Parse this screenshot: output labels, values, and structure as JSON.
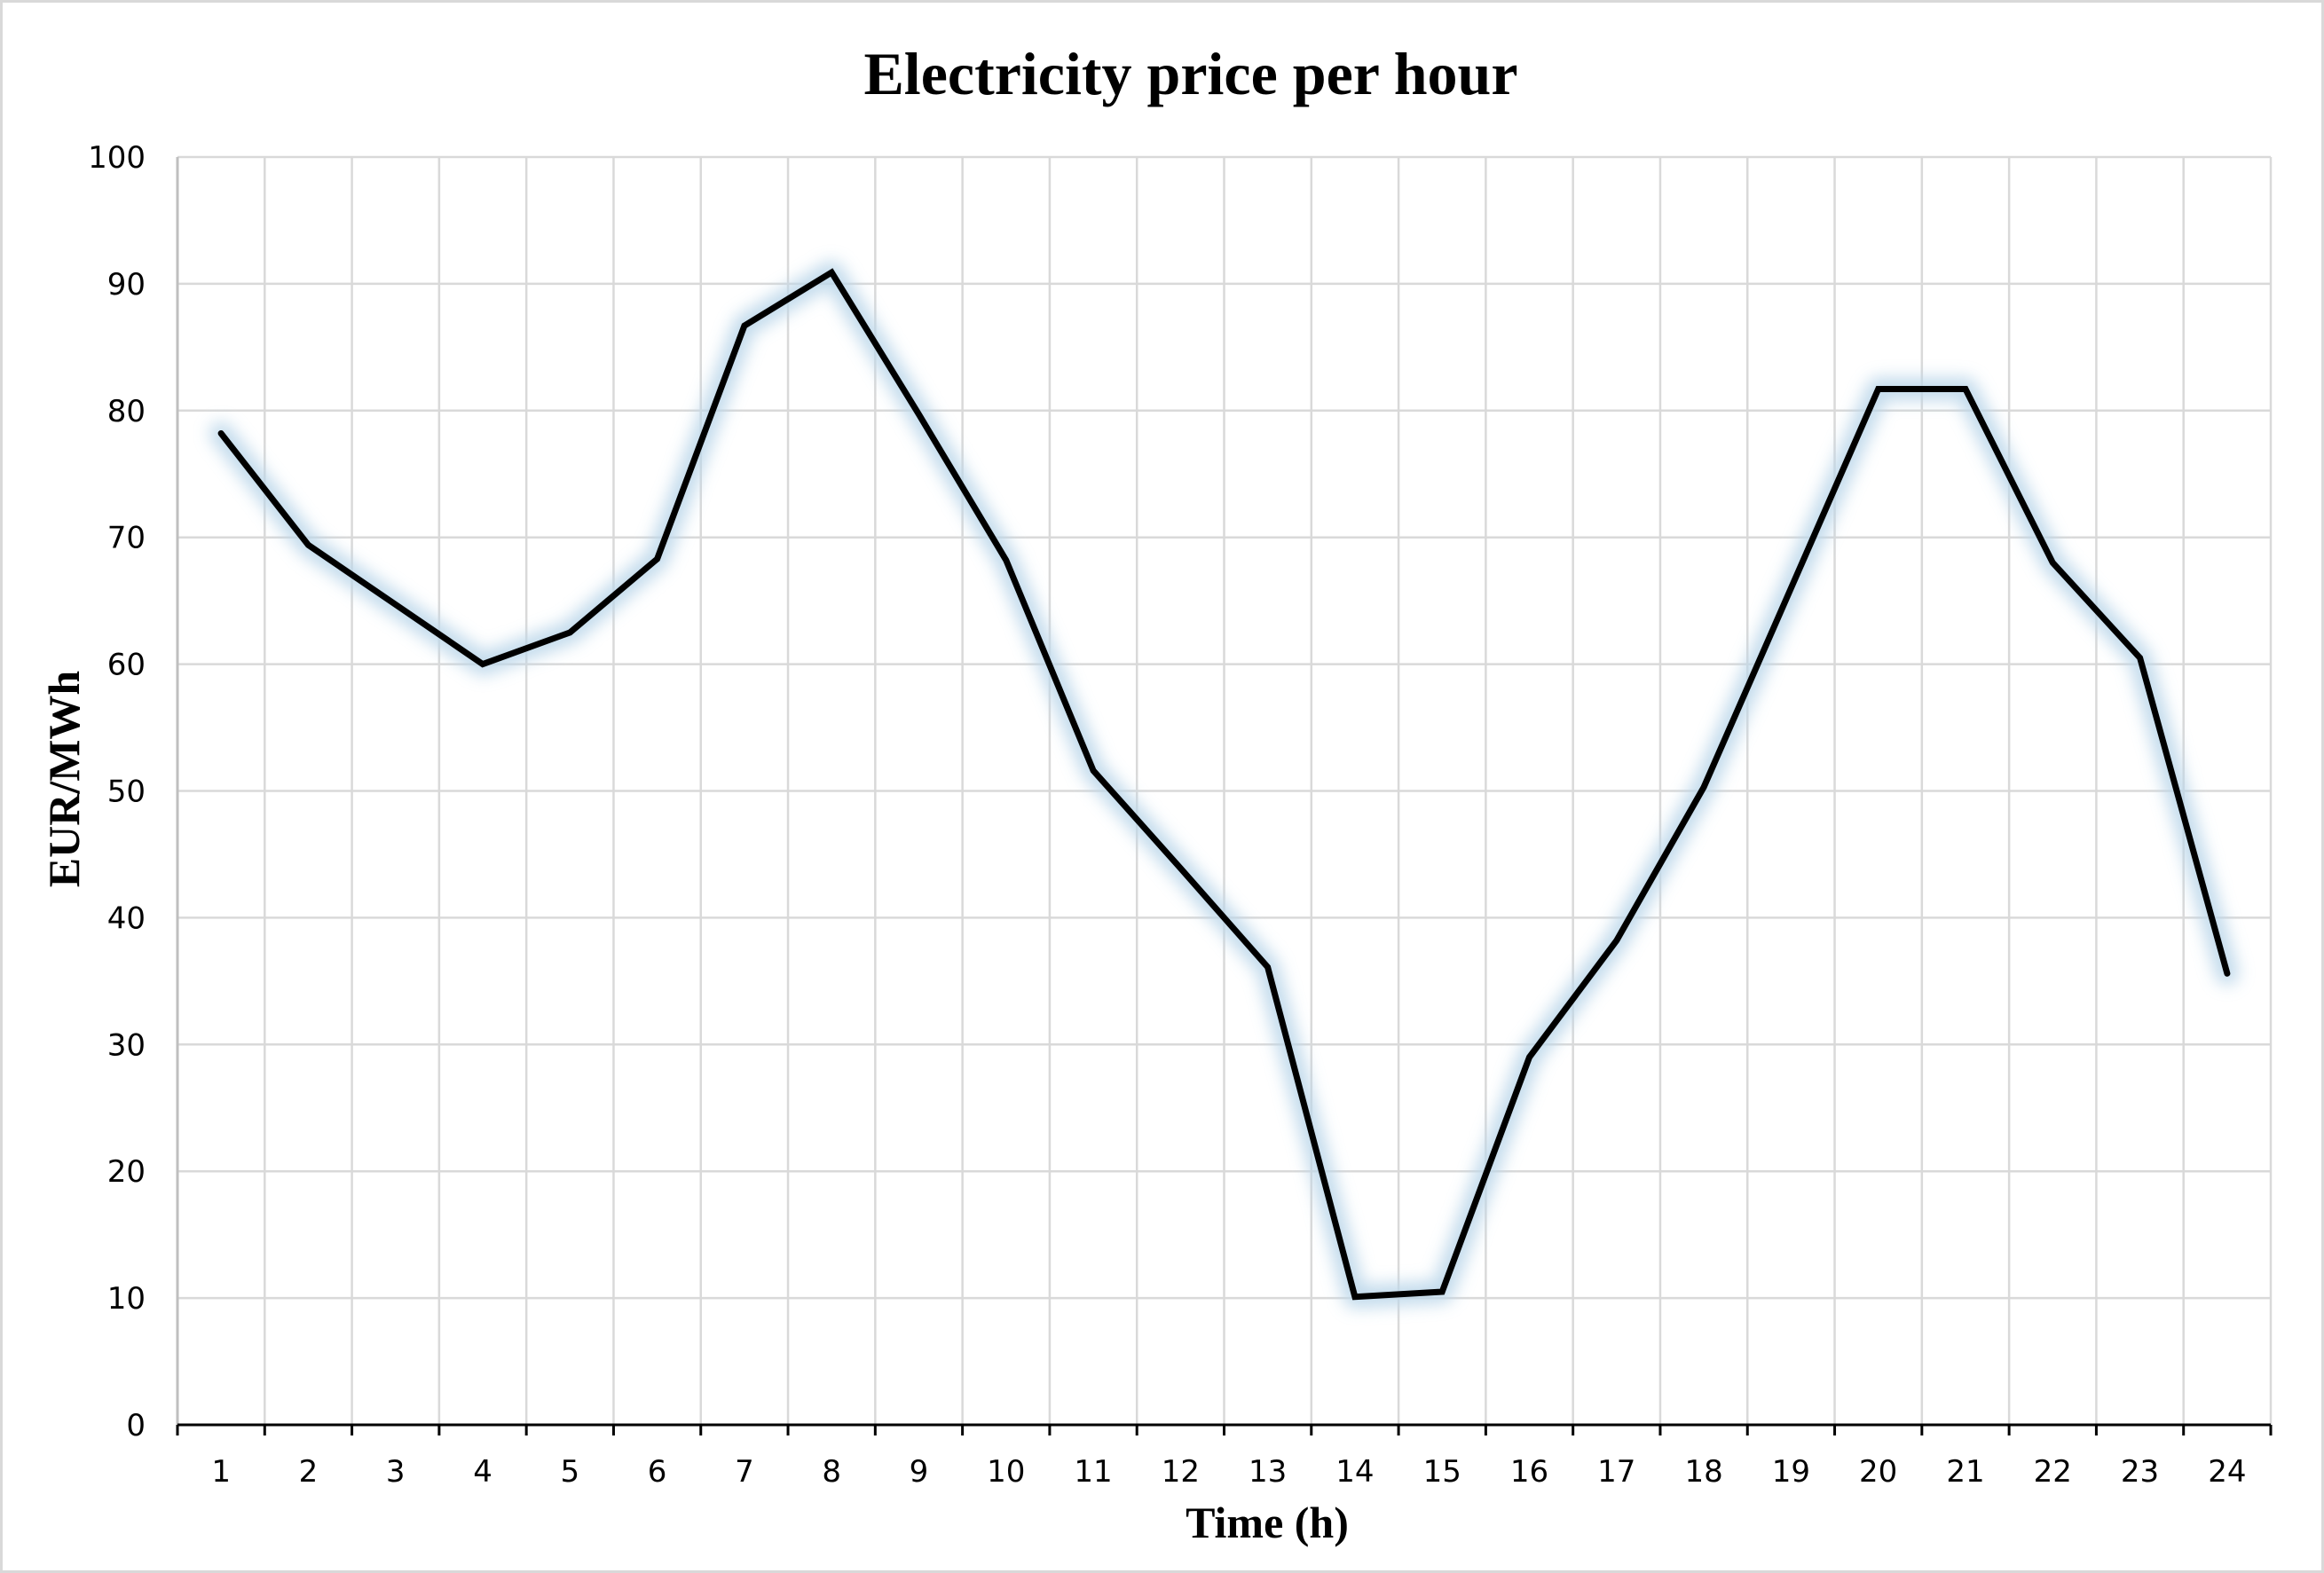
{
  "chart_data": {
    "type": "line",
    "title": "Electricity price per hour",
    "xlabel": "Time (h)",
    "ylabel": "EUR/MWh",
    "categories": [
      "1",
      "2",
      "3",
      "4",
      "5",
      "6",
      "7",
      "8",
      "9",
      "10",
      "11",
      "12",
      "13",
      "14",
      "15",
      "16",
      "17",
      "18",
      "19",
      "20",
      "21",
      "22",
      "23",
      "24"
    ],
    "series": [
      {
        "values": [
          78.2,
          69.4,
          64.7,
          60.0,
          62.5,
          68.3,
          86.7,
          90.9,
          79.7,
          68.2,
          51.6,
          43.9,
          36.1,
          10.1,
          10.5,
          29.0,
          38.2,
          50.3,
          66.0,
          81.7,
          81.7,
          68.0,
          60.5,
          35.6
        ],
        "color": "#000000",
        "glow": "#bcd7ea"
      }
    ],
    "yticks": [
      0,
      10,
      20,
      30,
      40,
      50,
      60,
      70,
      80,
      90,
      100
    ],
    "ylim": [
      0,
      100
    ],
    "grid": true,
    "legend": "none"
  }
}
